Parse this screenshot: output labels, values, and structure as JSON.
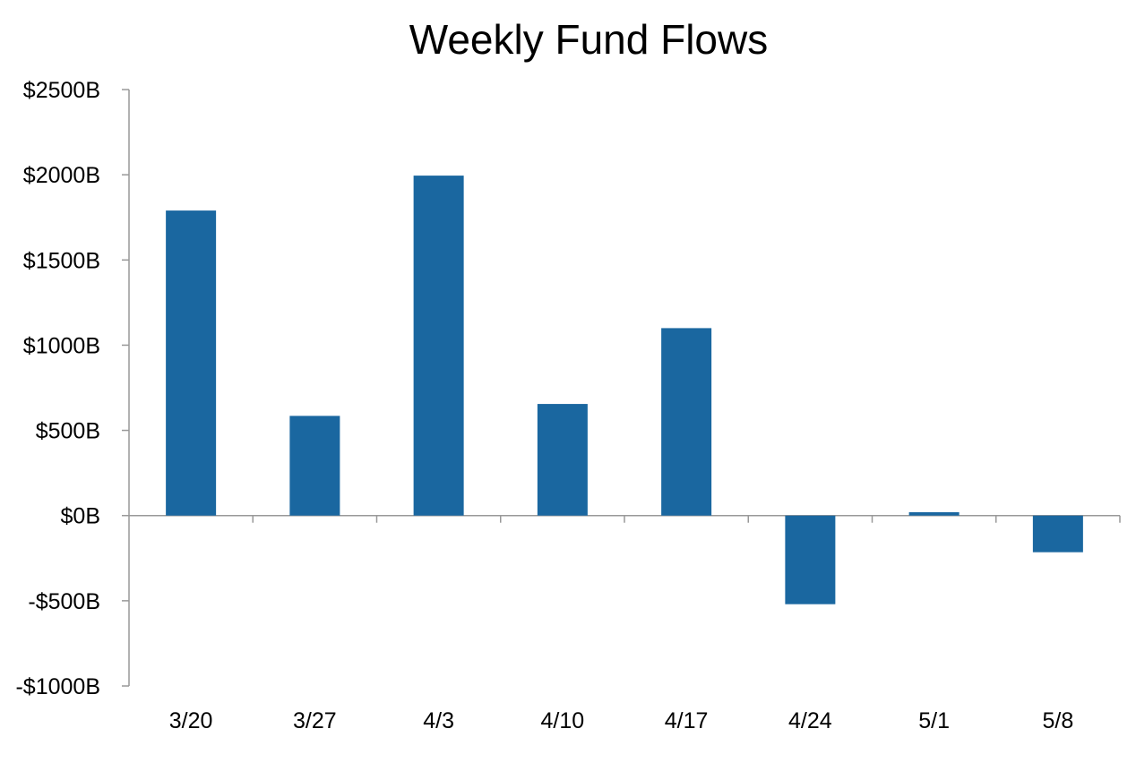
{
  "chart_data": {
    "type": "bar",
    "title": "Weekly Fund Flows",
    "xlabel": "",
    "ylabel": "",
    "categories": [
      "3/20",
      "3/27",
      "4/3",
      "4/10",
      "4/17",
      "4/24",
      "5/1",
      "5/8"
    ],
    "values": [
      1790,
      585,
      1995,
      655,
      1100,
      -520,
      20,
      -215
    ],
    "ylim": [
      -1000,
      2500
    ],
    "yticks": [
      2500,
      2000,
      1500,
      1000,
      500,
      0,
      -500,
      -1000
    ],
    "ytick_labels": [
      "$2500B",
      "$2000B",
      "$1500B",
      "$1000B",
      "$500B",
      "$0B",
      "-$500B",
      "-$1000B"
    ],
    "grid": false,
    "legend": "none",
    "bar_color": "#1a67a0",
    "axis_color": "#999999"
  }
}
